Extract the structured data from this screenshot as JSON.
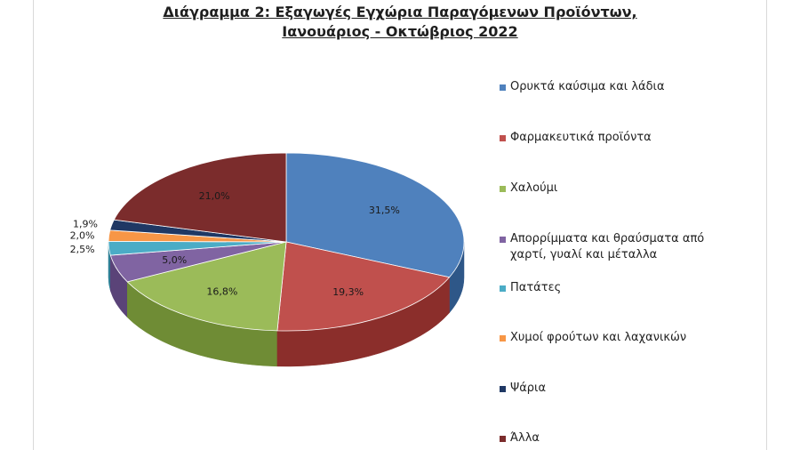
{
  "title": {
    "line1": "Διάγραμμα  2: Εξαγωγές Εγχώρια Παραγόμενων Προϊόντων,",
    "line2": "Ιανουάριος  - Οκτώβριος 2022"
  },
  "chart_data": {
    "type": "pie",
    "title": "Διάγραμμα  2: Εξαγωγές Εγχώρια Παραγόμενων Προϊόντων, Ιανουάριος  - Οκτώβριος 2022",
    "style": "3d",
    "legend_position": "right",
    "slices": [
      {
        "label": "Ορυκτά καύσιμα και λάδια",
        "value": 31.5,
        "display": "31,5%",
        "color": "#4f81bd",
        "side": "#2e5788"
      },
      {
        "label": "Φαρμακευτικά προϊόντα",
        "value": 19.3,
        "display": "19,3%",
        "color": "#c0504d",
        "side": "#8b2e2b"
      },
      {
        "label": "Χαλούμι",
        "value": 16.8,
        "display": "16,8%",
        "color": "#9bbb59",
        "side": "#6f8c35"
      },
      {
        "label": "Απορρίμματα και θραύσματα από χαρτί, γυαλί και μέταλλα",
        "value": 5.0,
        "display": "5,0%",
        "color": "#8064a2",
        "side": "#5a4378"
      },
      {
        "label": "Πατάτες",
        "value": 2.5,
        "display": "2,5%",
        "color": "#4bacc6",
        "side": "#2d7f95"
      },
      {
        "label": "Χυμοί φρούτων και λαχανικών",
        "value": 2.0,
        "display": "2,0%",
        "color": "#f79646",
        "side": "#b86a2a"
      },
      {
        "label": "Ψάρια",
        "value": 1.9,
        "display": "1,9%",
        "color": "#1f3864",
        "side": "#10203c"
      },
      {
        "label": "Άλλα",
        "value": 21.0,
        "display": "21,0%",
        "color": "#7b2c2c",
        "side": "#4f1a1a"
      }
    ]
  }
}
